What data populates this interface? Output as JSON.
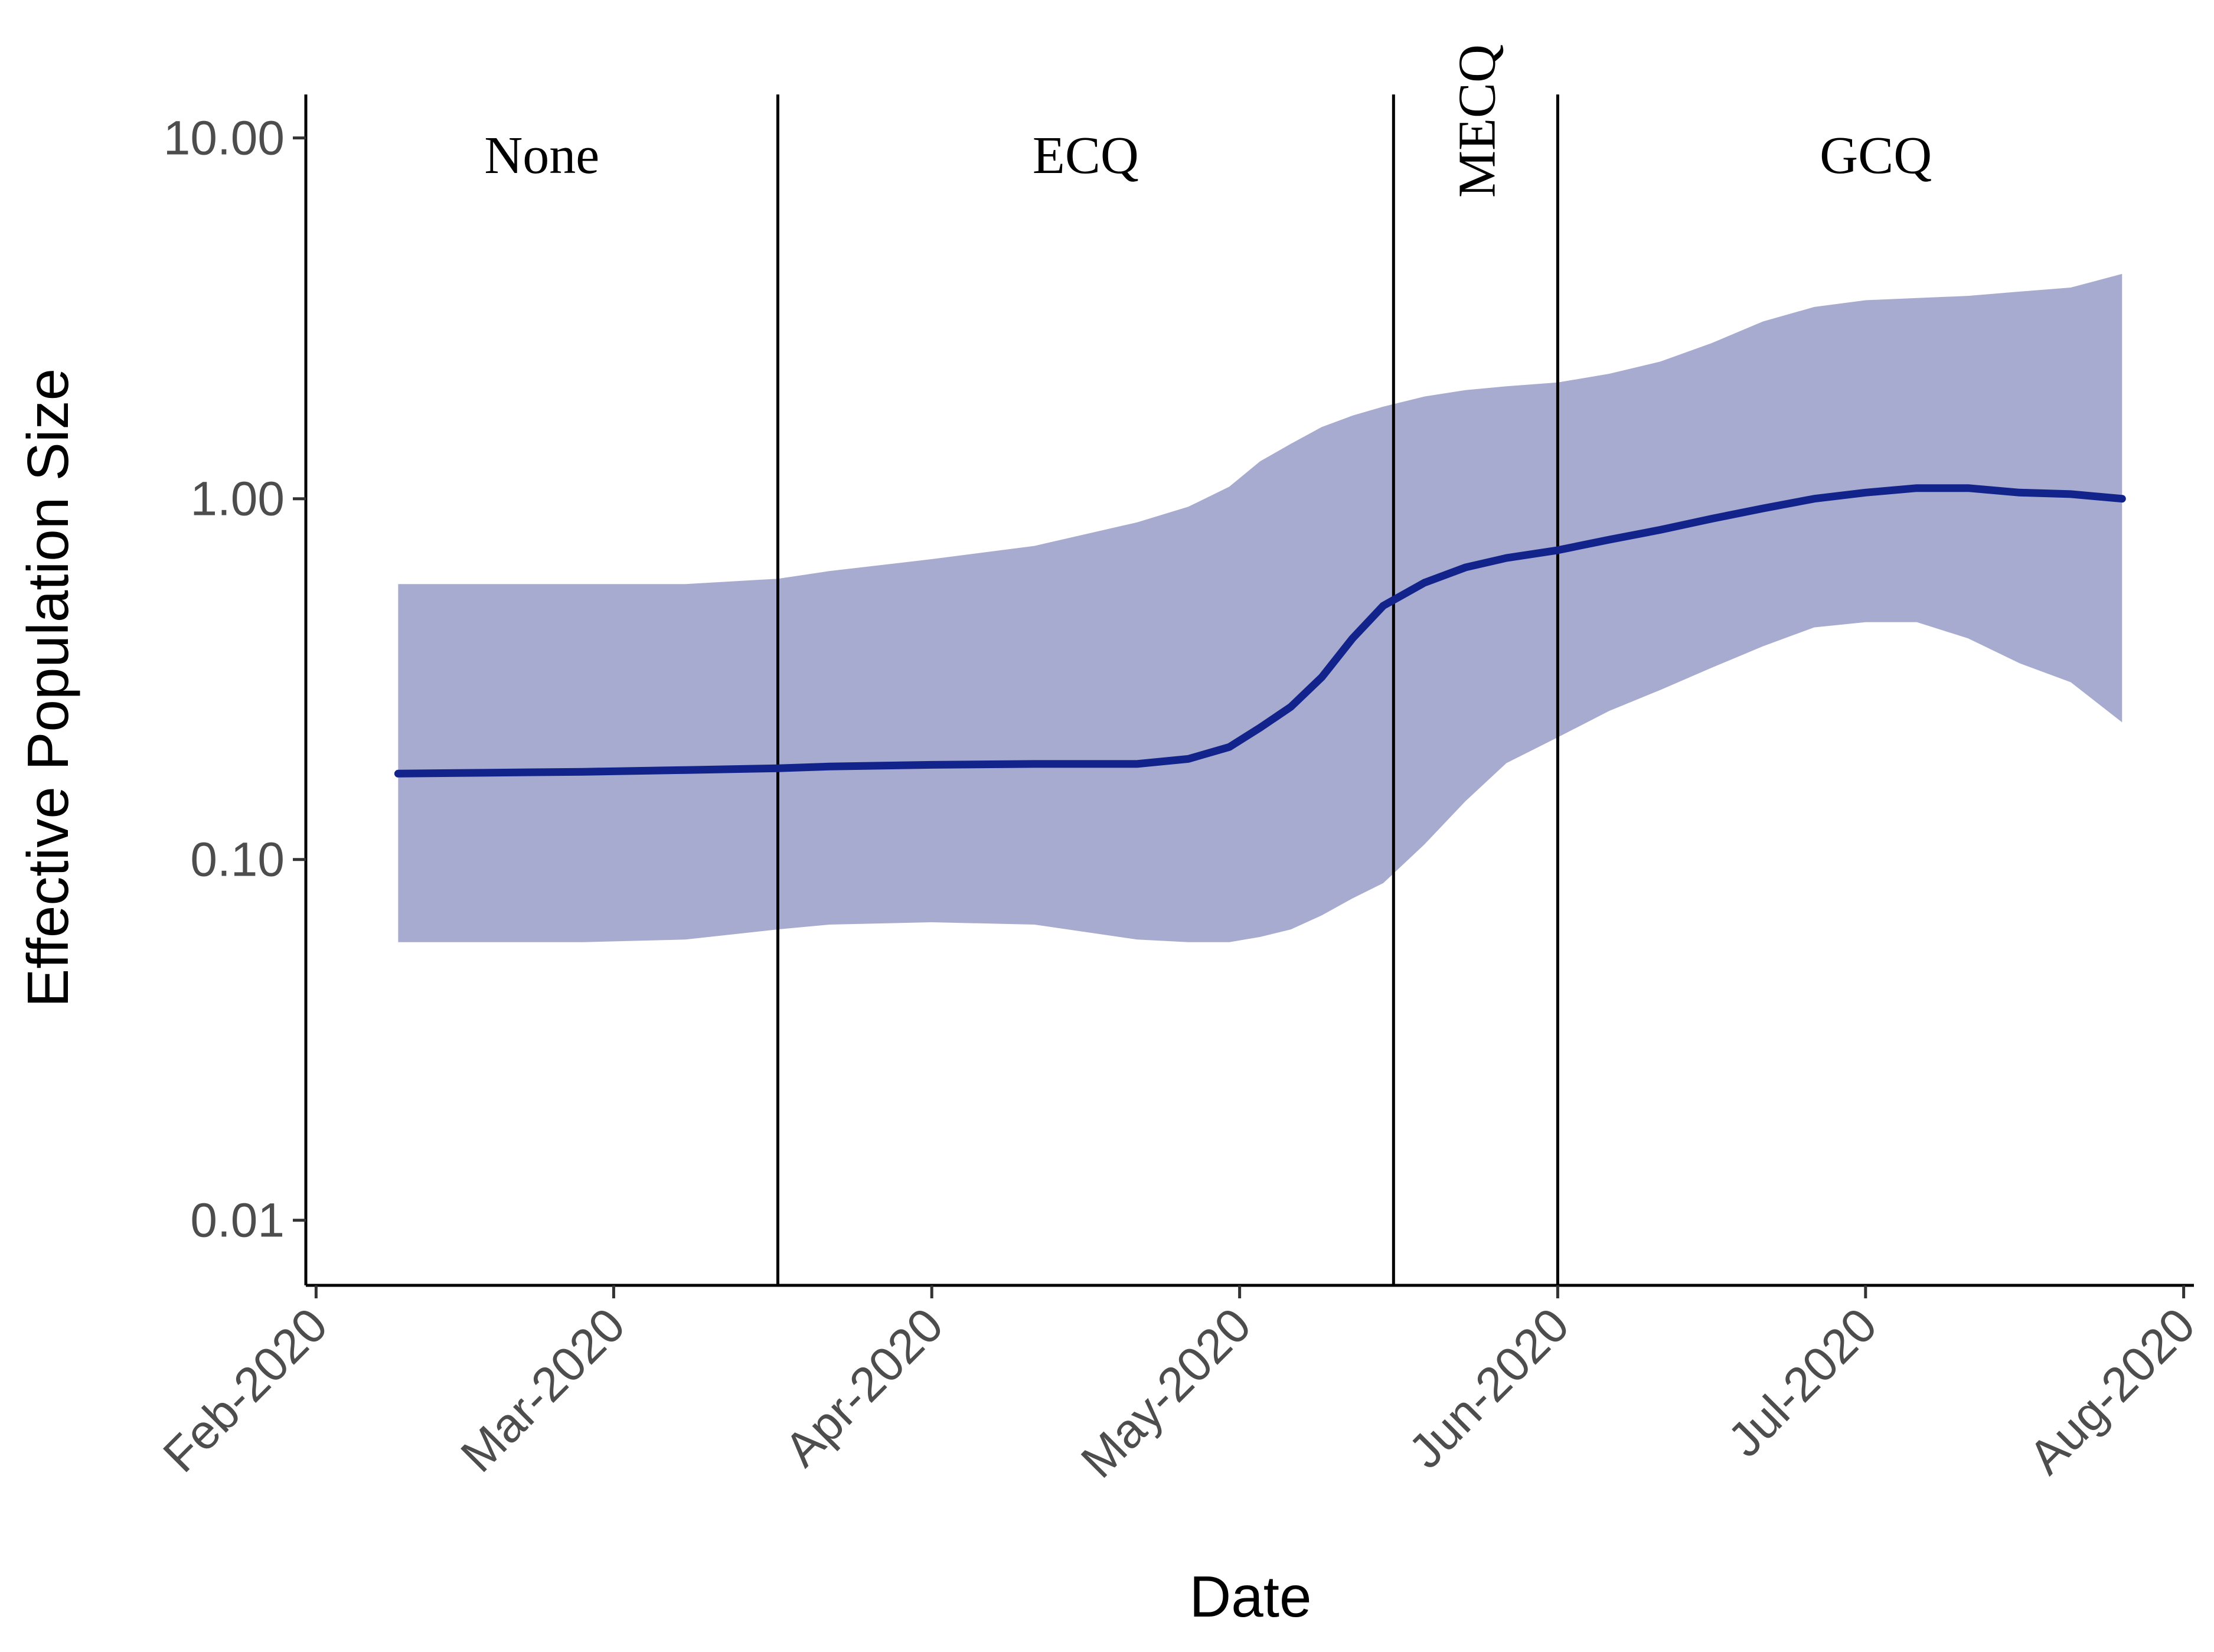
{
  "chart_data": {
    "type": "line",
    "xlabel": "Date",
    "ylabel": "Effective Population Size",
    "y_scale": "log10",
    "ylim": [
      0.0066,
      13.2
    ],
    "xlim": [
      "2020-01-31",
      "2020-08-02"
    ],
    "grid": false,
    "legend": "none",
    "y_ticks": [
      {
        "value": 0.01,
        "label": "0.01"
      },
      {
        "value": 0.1,
        "label": "0.10"
      },
      {
        "value": 1,
        "label": "1.00"
      },
      {
        "value": 10,
        "label": "10.00"
      }
    ],
    "x_ticks": [
      {
        "date": "2020-02-01",
        "label": "Feb-2020"
      },
      {
        "date": "2020-03-01",
        "label": "Mar-2020"
      },
      {
        "date": "2020-04-01",
        "label": "Apr-2020"
      },
      {
        "date": "2020-05-01",
        "label": "May-2020"
      },
      {
        "date": "2020-06-01",
        "label": "Jun-2020"
      },
      {
        "date": "2020-07-01",
        "label": "Jul-2020"
      },
      {
        "date": "2020-08-01",
        "label": "Aug-2020"
      }
    ],
    "phase_dividers": [
      "2020-03-17",
      "2020-05-16",
      "2020-06-01"
    ],
    "phases": [
      {
        "label": "None",
        "start": "2020-01-31",
        "end": "2020-03-17",
        "rotated": false
      },
      {
        "label": "ECQ",
        "start": "2020-03-17",
        "end": "2020-05-16",
        "rotated": false
      },
      {
        "label": "MECQ",
        "start": "2020-05-16",
        "end": "2020-06-01",
        "rotated": true
      },
      {
        "label": "GCQ",
        "start": "2020-06-01",
        "end": "2020-08-02",
        "rotated": false
      }
    ],
    "colors": {
      "line": "#13238c",
      "band": "#a8abd0",
      "axis": "#000000"
    },
    "series": [
      {
        "x": [
          "2020-02-09",
          "2020-02-18",
          "2020-02-27",
          "2020-03-08",
          "2020-03-17",
          "2020-03-22",
          "2020-04-01",
          "2020-04-11",
          "2020-04-21",
          "2020-04-26",
          "2020-04-30",
          "2020-05-03",
          "2020-05-06",
          "2020-05-09",
          "2020-05-12",
          "2020-05-15",
          "2020-05-19",
          "2020-05-23",
          "2020-05-27",
          "2020-06-01",
          "2020-06-06",
          "2020-06-11",
          "2020-06-16",
          "2020-06-21",
          "2020-06-26",
          "2020-07-01",
          "2020-07-06",
          "2020-07-11",
          "2020-07-16",
          "2020-07-21",
          "2020-07-26"
        ],
        "y": [
          0.173,
          0.174,
          0.175,
          0.177,
          0.179,
          0.181,
          0.183,
          0.184,
          0.184,
          0.19,
          0.205,
          0.232,
          0.265,
          0.32,
          0.41,
          0.505,
          0.585,
          0.645,
          0.685,
          0.72,
          0.77,
          0.82,
          0.88,
          0.94,
          1.0,
          1.04,
          1.07,
          1.07,
          1.04,
          1.03,
          1.0
        ],
        "lower": [
          0.059,
          0.059,
          0.059,
          0.06,
          0.064,
          0.066,
          0.067,
          0.066,
          0.06,
          0.059,
          0.059,
          0.061,
          0.064,
          0.07,
          0.078,
          0.086,
          0.11,
          0.145,
          0.185,
          0.218,
          0.258,
          0.295,
          0.34,
          0.39,
          0.44,
          0.455,
          0.455,
          0.41,
          0.35,
          0.31,
          0.24
        ],
        "upper": [
          0.58,
          0.58,
          0.58,
          0.58,
          0.6,
          0.63,
          0.68,
          0.74,
          0.86,
          0.95,
          1.08,
          1.27,
          1.42,
          1.58,
          1.7,
          1.8,
          1.92,
          2.0,
          2.05,
          2.1,
          2.22,
          2.4,
          2.7,
          3.1,
          3.4,
          3.55,
          3.6,
          3.65,
          3.75,
          3.85,
          4.2
        ]
      }
    ]
  }
}
